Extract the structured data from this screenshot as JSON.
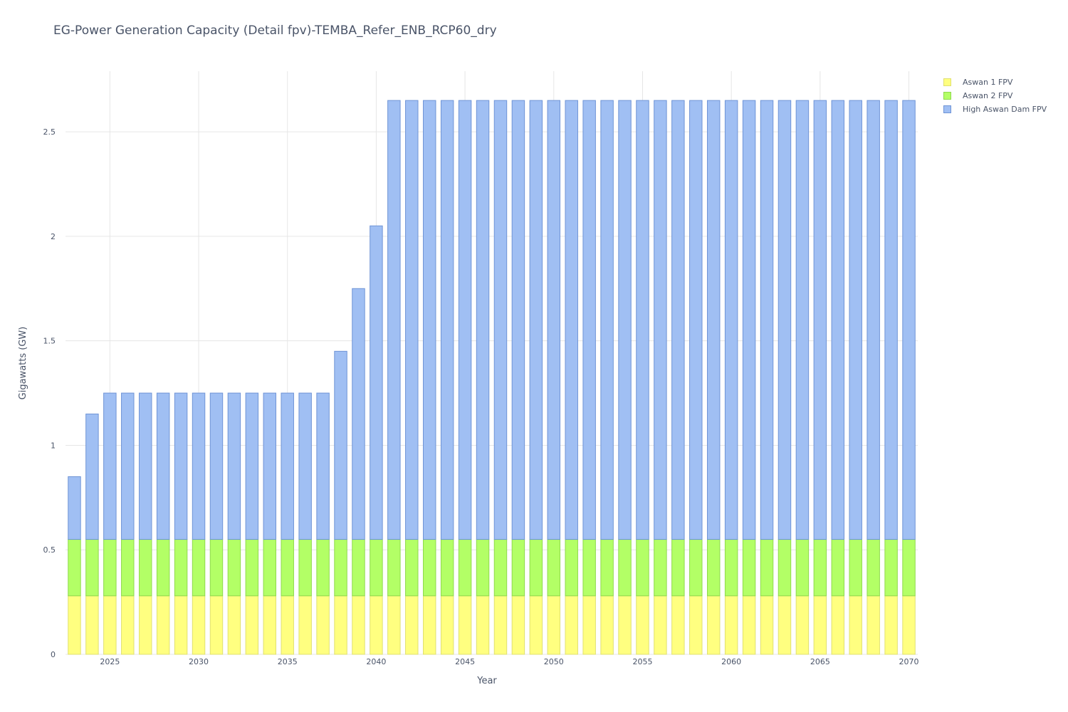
{
  "chart_data": {
    "type": "bar",
    "stacked": true,
    "title": "EG-Power Generation Capacity (Detail fpv)-TEMBA_Refer_ENB_RCP60_dry",
    "xlabel": "Year",
    "ylabel": "Gigawatts (GW)",
    "x": [
      2023,
      2024,
      2025,
      2026,
      2027,
      2028,
      2029,
      2030,
      2031,
      2032,
      2033,
      2034,
      2035,
      2036,
      2037,
      2038,
      2039,
      2040,
      2041,
      2042,
      2043,
      2044,
      2045,
      2046,
      2047,
      2048,
      2049,
      2050,
      2051,
      2052,
      2053,
      2054,
      2055,
      2056,
      2057,
      2058,
      2059,
      2060,
      2061,
      2062,
      2063,
      2064,
      2065,
      2066,
      2067,
      2068,
      2069,
      2070
    ],
    "xlim": [
      2022.5,
      2070.5
    ],
    "ylim": [
      0,
      2.79
    ],
    "xticks": [
      "2025",
      "2030",
      "2035",
      "2040",
      "2045",
      "2050",
      "2055",
      "2060",
      "2065",
      "2070"
    ],
    "yticks": [
      "0",
      "0.5",
      "1",
      "1.5",
      "2",
      "2.5"
    ],
    "grid": true,
    "legend_position": "top-right",
    "series": [
      {
        "name": "Aswan 1 FPV",
        "color": "#ffff80",
        "edge": "#e0e070",
        "values": [
          0.28,
          0.28,
          0.28,
          0.28,
          0.28,
          0.28,
          0.28,
          0.28,
          0.28,
          0.28,
          0.28,
          0.28,
          0.28,
          0.28,
          0.28,
          0.28,
          0.28,
          0.28,
          0.28,
          0.28,
          0.28,
          0.28,
          0.28,
          0.28,
          0.28,
          0.28,
          0.28,
          0.28,
          0.28,
          0.28,
          0.28,
          0.28,
          0.28,
          0.28,
          0.28,
          0.28,
          0.28,
          0.28,
          0.28,
          0.28,
          0.28,
          0.28,
          0.28,
          0.28,
          0.28,
          0.28,
          0.28,
          0.28
        ]
      },
      {
        "name": "Aswan 2 FPV",
        "color": "#b3ff66",
        "edge": "#8fd94d",
        "values": [
          0.27,
          0.27,
          0.27,
          0.27,
          0.27,
          0.27,
          0.27,
          0.27,
          0.27,
          0.27,
          0.27,
          0.27,
          0.27,
          0.27,
          0.27,
          0.27,
          0.27,
          0.27,
          0.27,
          0.27,
          0.27,
          0.27,
          0.27,
          0.27,
          0.27,
          0.27,
          0.27,
          0.27,
          0.27,
          0.27,
          0.27,
          0.27,
          0.27,
          0.27,
          0.27,
          0.27,
          0.27,
          0.27,
          0.27,
          0.27,
          0.27,
          0.27,
          0.27,
          0.27,
          0.27,
          0.27,
          0.27,
          0.27
        ]
      },
      {
        "name": "High Aswan Dam FPV",
        "color": "#a0bff3",
        "edge": "#6f94d6",
        "values": [
          0.3,
          0.6,
          0.7,
          0.7,
          0.7,
          0.7,
          0.7,
          0.7,
          0.7,
          0.7,
          0.7,
          0.7,
          0.7,
          0.7,
          0.7,
          0.9,
          1.2,
          1.5,
          2.1,
          2.1,
          2.1,
          2.1,
          2.1,
          2.1,
          2.1,
          2.1,
          2.1,
          2.1,
          2.1,
          2.1,
          2.1,
          2.1,
          2.1,
          2.1,
          2.1,
          2.1,
          2.1,
          2.1,
          2.1,
          2.1,
          2.1,
          2.1,
          2.1,
          2.1,
          2.1,
          2.1,
          2.1,
          2.1
        ]
      }
    ]
  }
}
